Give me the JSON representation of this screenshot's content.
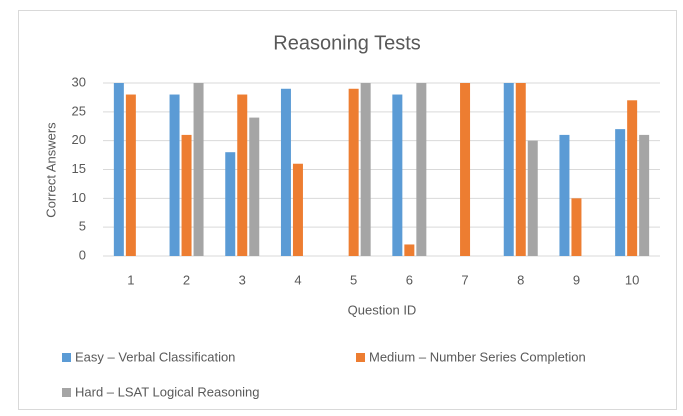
{
  "chart_data": {
    "type": "bar",
    "title": "Reasoning Tests",
    "x_label": "Question ID",
    "y_label": "Correct Answers",
    "categories": [
      "1",
      "2",
      "3",
      "4",
      "5",
      "6",
      "7",
      "8",
      "9",
      "10"
    ],
    "series": [
      {
        "name": "Easy – Verbal Classification",
        "color": "#5b9bd5",
        "values": [
          30,
          28,
          18,
          29,
          0,
          28,
          0,
          30,
          21,
          22
        ]
      },
      {
        "name": "Medium – Number Series Completion",
        "color": "#ed7d31",
        "values": [
          28,
          21,
          28,
          16,
          29,
          2,
          30,
          30,
          10,
          27
        ]
      },
      {
        "name": "Hard – LSAT Logical Reasoning",
        "color": "#a5a5a5",
        "values": [
          0,
          30,
          24,
          0,
          30,
          30,
          0,
          20,
          0,
          21
        ]
      }
    ],
    "ylim": [
      0,
      30
    ],
    "yticks": [
      0,
      5,
      10,
      15,
      20,
      25,
      30
    ],
    "grid": true,
    "legend": "bottom"
  }
}
